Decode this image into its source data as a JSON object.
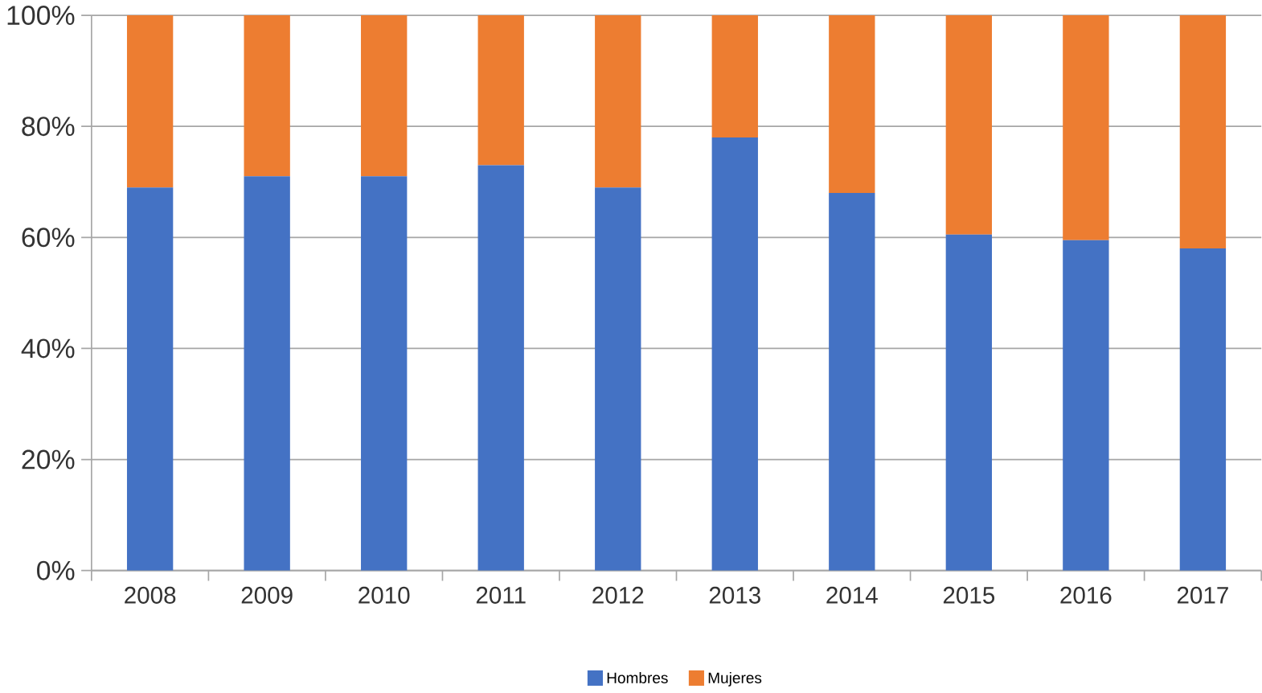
{
  "chart_data": {
    "type": "bar",
    "stacked": true,
    "categories": [
      "2008",
      "2009",
      "2010",
      "2011",
      "2012",
      "2013",
      "2014",
      "2015",
      "2016",
      "2017"
    ],
    "series": [
      {
        "name": "Hombres",
        "color": "#4472c4",
        "values": [
          69,
          71,
          71,
          73,
          69,
          78,
          68,
          60.5,
          59.5,
          58
        ]
      },
      {
        "name": "Mujeres",
        "color": "#ed7d31",
        "values": [
          31,
          29,
          29,
          27,
          31,
          22,
          32,
          39.5,
          40.5,
          42
        ]
      }
    ],
    "ylim": [
      0,
      100
    ],
    "yticks": [
      {
        "value": 0,
        "label": "0%"
      },
      {
        "value": 20,
        "label": "20%"
      },
      {
        "value": 40,
        "label": "40%"
      },
      {
        "value": 60,
        "label": "60%"
      },
      {
        "value": 80,
        "label": "80%"
      },
      {
        "value": 100,
        "label": "100%"
      }
    ],
    "grid": "y",
    "legend": "bottom"
  }
}
